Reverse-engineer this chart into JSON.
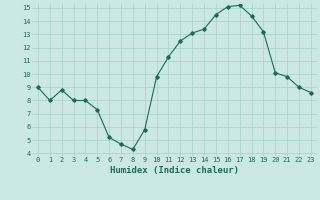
{
  "x": [
    0,
    1,
    2,
    3,
    4,
    5,
    6,
    7,
    8,
    9,
    10,
    11,
    12,
    13,
    14,
    15,
    16,
    17,
    18,
    19,
    20,
    21,
    22,
    23
  ],
  "y": [
    9.0,
    8.0,
    8.8,
    8.0,
    8.0,
    7.3,
    5.2,
    4.7,
    4.3,
    5.8,
    9.8,
    11.3,
    12.5,
    13.1,
    13.4,
    14.5,
    15.1,
    15.2,
    14.4,
    13.2,
    10.1,
    9.8,
    9.0,
    8.6
  ],
  "xlabel": "Humidex (Indice chaleur)",
  "ylim_min": 3.8,
  "ylim_max": 15.3,
  "xlim_min": -0.5,
  "xlim_max": 23.5,
  "yticks": [
    4,
    5,
    6,
    7,
    8,
    9,
    10,
    11,
    12,
    13,
    14,
    15
  ],
  "xticks": [
    0,
    1,
    2,
    3,
    4,
    5,
    6,
    7,
    8,
    9,
    10,
    11,
    12,
    13,
    14,
    15,
    16,
    17,
    18,
    19,
    20,
    21,
    22,
    23
  ],
  "line_color": "#1a6b5a",
  "marker": "D",
  "marker_size": 1.8,
  "bg_color": "#cce8e4",
  "grid_color": "#aacfca",
  "xlabel_color": "#1a6b5a",
  "tick_color": "#1a6b5a",
  "tick_fontsize": 5.0,
  "xlabel_fontsize": 6.5,
  "linewidth": 0.8
}
